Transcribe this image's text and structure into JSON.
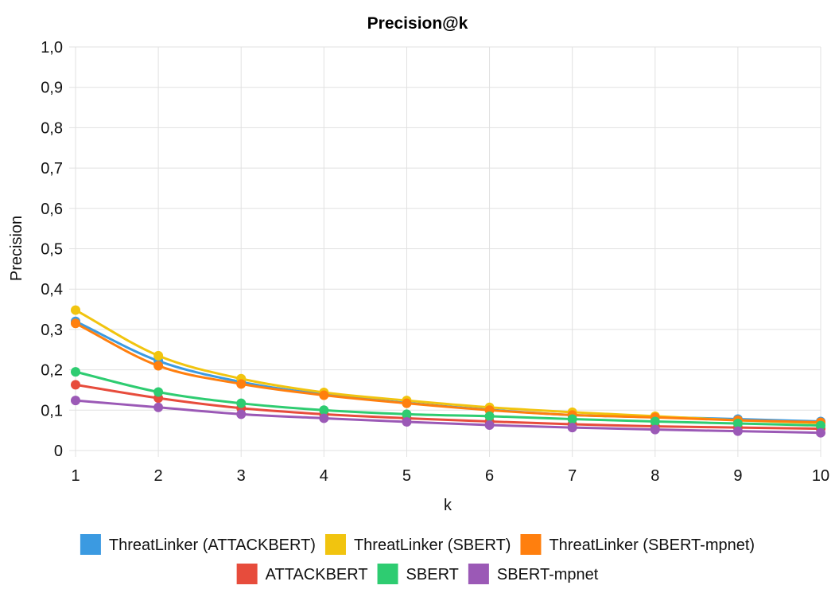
{
  "chart_data": {
    "type": "line",
    "title": "Precision@k",
    "xlabel": "k",
    "ylabel": "Precision",
    "x": [
      1,
      2,
      3,
      4,
      5,
      6,
      7,
      8,
      9,
      10
    ],
    "xlim": [
      1,
      10
    ],
    "ylim": [
      0,
      1.0
    ],
    "y_ticks": [
      "0",
      "0,1",
      "0,2",
      "0,3",
      "0,4",
      "0,5",
      "0,6",
      "0,7",
      "0,8",
      "0,9",
      "1,0"
    ],
    "x_ticks": [
      "1",
      "2",
      "3",
      "4",
      "5",
      "6",
      "7",
      "8",
      "9",
      "10"
    ],
    "grid": true,
    "legend_position": "bottom",
    "series": [
      {
        "name": "ThreatLinker (ATTACKBERT)",
        "color": "#3b9ae1",
        "values": [
          0.32,
          0.222,
          0.17,
          0.139,
          0.118,
          0.101,
          0.088,
          0.083,
          0.078,
          0.072
        ]
      },
      {
        "name": "ThreatLinker (SBERT)",
        "color": "#f1c40f",
        "values": [
          0.348,
          0.235,
          0.178,
          0.144,
          0.124,
          0.107,
          0.095,
          0.085,
          0.075,
          0.068
        ]
      },
      {
        "name": "ThreatLinker (SBERT-mpnet)",
        "color": "#ff7f0e",
        "values": [
          0.315,
          0.21,
          0.165,
          0.137,
          0.117,
          0.1,
          0.088,
          0.082,
          0.075,
          0.07
        ]
      },
      {
        "name": "ATTACKBERT",
        "color": "#e74c3c",
        "values": [
          0.163,
          0.13,
          0.105,
          0.09,
          0.08,
          0.072,
          0.065,
          0.06,
          0.057,
          0.054
        ]
      },
      {
        "name": "SBERT",
        "color": "#2ecc71",
        "values": [
          0.195,
          0.145,
          0.117,
          0.1,
          0.09,
          0.085,
          0.078,
          0.072,
          0.067,
          0.062
        ]
      },
      {
        "name": "SBERT-mpnet",
        "color": "#9b59b6",
        "values": [
          0.124,
          0.107,
          0.09,
          0.08,
          0.071,
          0.063,
          0.057,
          0.052,
          0.048,
          0.044
        ]
      }
    ]
  }
}
